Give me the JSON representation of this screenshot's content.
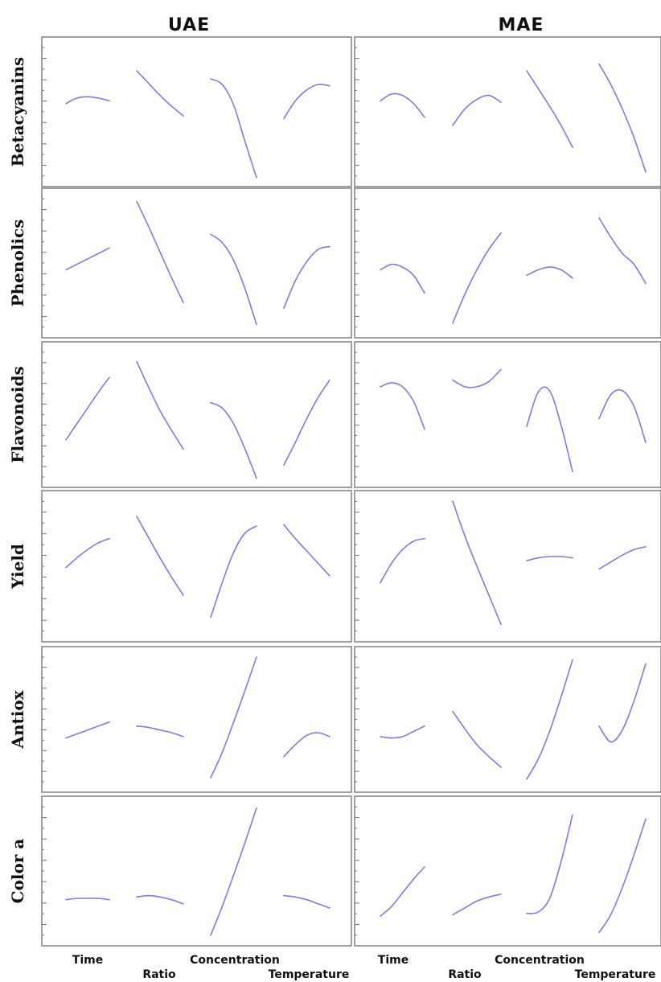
{
  "chart_data": {
    "type": "line",
    "kind": "factor response profiles (prediction profiler)",
    "columns": [
      "UAE",
      "MAE"
    ],
    "rows": [
      "Betacyanins",
      "Phenolics",
      "Flavonoids",
      "Yield",
      "Antiox",
      "Color a"
    ],
    "factors": [
      "Time",
      "Ratio",
      "Concentration",
      "Temperature"
    ],
    "y_scale": "relative response, 0 (panel bottom) to 1 (panel top); no tick values printed",
    "curve_color": "#7b7ed8",
    "panels": [
      {
        "column": "UAE",
        "row": "Betacyanins",
        "profiles": {
          "Time": [
            0.56,
            0.6,
            0.61,
            0.6,
            0.58
          ],
          "Ratio": [
            0.8,
            0.71,
            0.62,
            0.54,
            0.47
          ],
          "Concentration": [
            0.74,
            0.7,
            0.55,
            0.28,
            0.02
          ],
          "Temperature": [
            0.45,
            0.58,
            0.66,
            0.7,
            0.69
          ]
        }
      },
      {
        "column": "UAE",
        "row": "Phenolics",
        "profiles": {
          "Time": [
            0.45,
            0.49,
            0.53,
            0.57,
            0.61
          ],
          "Ratio": [
            0.95,
            0.77,
            0.58,
            0.39,
            0.21
          ],
          "Concentration": [
            0.71,
            0.65,
            0.52,
            0.31,
            0.05
          ],
          "Temperature": [
            0.17,
            0.37,
            0.51,
            0.6,
            0.62
          ]
        }
      },
      {
        "column": "UAE",
        "row": "Flavonoids",
        "profiles": {
          "Time": [
            0.31,
            0.43,
            0.55,
            0.67,
            0.78
          ],
          "Ratio": [
            0.9,
            0.71,
            0.53,
            0.38,
            0.24
          ],
          "Concentration": [
            0.59,
            0.55,
            0.43,
            0.24,
            0.02
          ],
          "Temperature": [
            0.12,
            0.29,
            0.47,
            0.63,
            0.76
          ]
        }
      },
      {
        "column": "UAE",
        "row": "Yield",
        "profiles": {
          "Time": [
            0.49,
            0.56,
            0.62,
            0.67,
            0.7
          ],
          "Ratio": [
            0.86,
            0.71,
            0.56,
            0.42,
            0.29
          ],
          "Concentration": [
            0.13,
            0.38,
            0.6,
            0.74,
            0.79
          ],
          "Temperature": [
            0.8,
            0.7,
            0.61,
            0.52,
            0.43
          ]
        }
      },
      {
        "column": "UAE",
        "row": "Antiox",
        "profiles": {
          "Time": [
            0.36,
            0.39,
            0.42,
            0.45,
            0.48
          ],
          "Ratio": [
            0.45,
            0.44,
            0.42,
            0.4,
            0.37
          ],
          "Concentration": [
            0.06,
            0.25,
            0.48,
            0.72,
            0.97
          ],
          "Temperature": [
            0.22,
            0.31,
            0.38,
            0.4,
            0.37
          ]
        }
      },
      {
        "column": "UAE",
        "row": "Color a",
        "profiles": {
          "Time": [
            0.29,
            0.3,
            0.3,
            0.3,
            0.29
          ],
          "Ratio": [
            0.31,
            0.32,
            0.31,
            0.29,
            0.26
          ],
          "Concentration": [
            0.03,
            0.24,
            0.47,
            0.71,
            0.96
          ],
          "Temperature": [
            0.32,
            0.31,
            0.29,
            0.26,
            0.23
          ]
        }
      },
      {
        "column": "MAE",
        "row": "Betacyanins",
        "profiles": {
          "Time": [
            0.58,
            0.63,
            0.62,
            0.56,
            0.46
          ],
          "Ratio": [
            0.4,
            0.52,
            0.59,
            0.62,
            0.57
          ],
          "Concentration": [
            0.8,
            0.67,
            0.54,
            0.4,
            0.24
          ],
          "Temperature": [
            0.85,
            0.7,
            0.52,
            0.31,
            0.06
          ]
        }
      },
      {
        "column": "MAE",
        "row": "Phenolics",
        "profiles": {
          "Time": [
            0.45,
            0.49,
            0.47,
            0.41,
            0.28
          ],
          "Ratio": [
            0.06,
            0.27,
            0.45,
            0.6,
            0.72
          ],
          "Concentration": [
            0.41,
            0.45,
            0.47,
            0.45,
            0.39
          ],
          "Temperature": [
            0.83,
            0.69,
            0.57,
            0.49,
            0.35
          ]
        }
      },
      {
        "column": "MAE",
        "row": "Flavonoids",
        "profiles": {
          "Time": [
            0.71,
            0.74,
            0.71,
            0.6,
            0.39
          ],
          "Ratio": [
            0.76,
            0.71,
            0.71,
            0.75,
            0.84
          ],
          "Concentration": [
            0.41,
            0.67,
            0.68,
            0.42,
            0.07
          ],
          "Temperature": [
            0.47,
            0.65,
            0.68,
            0.56,
            0.29
          ]
        }
      },
      {
        "column": "MAE",
        "row": "Yield",
        "profiles": {
          "Time": [
            0.38,
            0.52,
            0.62,
            0.68,
            0.7
          ],
          "Ratio": [
            0.97,
            0.72,
            0.5,
            0.29,
            0.08
          ],
          "Concentration": [
            0.54,
            0.56,
            0.57,
            0.57,
            0.56
          ],
          "Temperature": [
            0.48,
            0.53,
            0.58,
            0.62,
            0.64
          ]
        }
      },
      {
        "column": "MAE",
        "row": "Antiox",
        "profiles": {
          "Time": [
            0.37,
            0.36,
            0.37,
            0.41,
            0.45
          ],
          "Ratio": [
            0.56,
            0.43,
            0.31,
            0.22,
            0.14
          ],
          "Concentration": [
            0.05,
            0.2,
            0.41,
            0.67,
            0.95
          ],
          "Temperature": [
            0.45,
            0.33,
            0.42,
            0.64,
            0.92
          ]
        }
      },
      {
        "column": "MAE",
        "row": "Color a",
        "profiles": {
          "Time": [
            0.17,
            0.24,
            0.34,
            0.44,
            0.53
          ],
          "Ratio": [
            0.18,
            0.23,
            0.28,
            0.31,
            0.33
          ],
          "Concentration": [
            0.19,
            0.2,
            0.3,
            0.57,
            0.91
          ],
          "Temperature": [
            0.05,
            0.18,
            0.38,
            0.62,
            0.88
          ]
        }
      }
    ]
  }
}
